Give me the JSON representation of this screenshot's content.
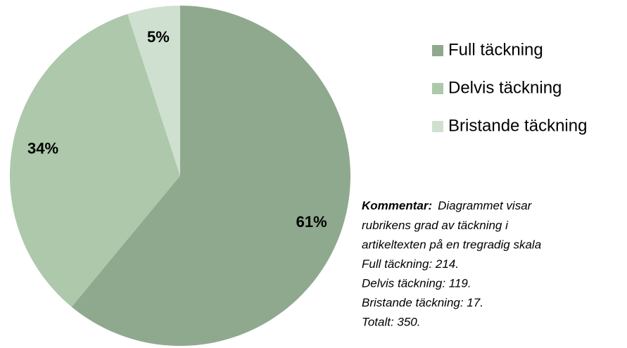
{
  "chart_data": {
    "type": "pie",
    "categories": [
      "Full täckning",
      "Delvis täckning",
      "Bristande täckning"
    ],
    "values": [
      61,
      34,
      5
    ],
    "value_labels": [
      "61%",
      "34%",
      "5%"
    ],
    "colors": [
      "#8fa98f",
      "#adc8ab",
      "#cfe0d0"
    ],
    "legend": "right",
    "annotation": {
      "label": "Kommentar:",
      "lines": [
        "Diagrammet visar",
        "rubrikens grad av täckning i",
        "artikeltexten på en tregradig skala",
        "Full täckning: 214.",
        "Delvis täckning: 119.",
        "Bristande täckning: 17.",
        "Totalt: 350."
      ]
    }
  }
}
